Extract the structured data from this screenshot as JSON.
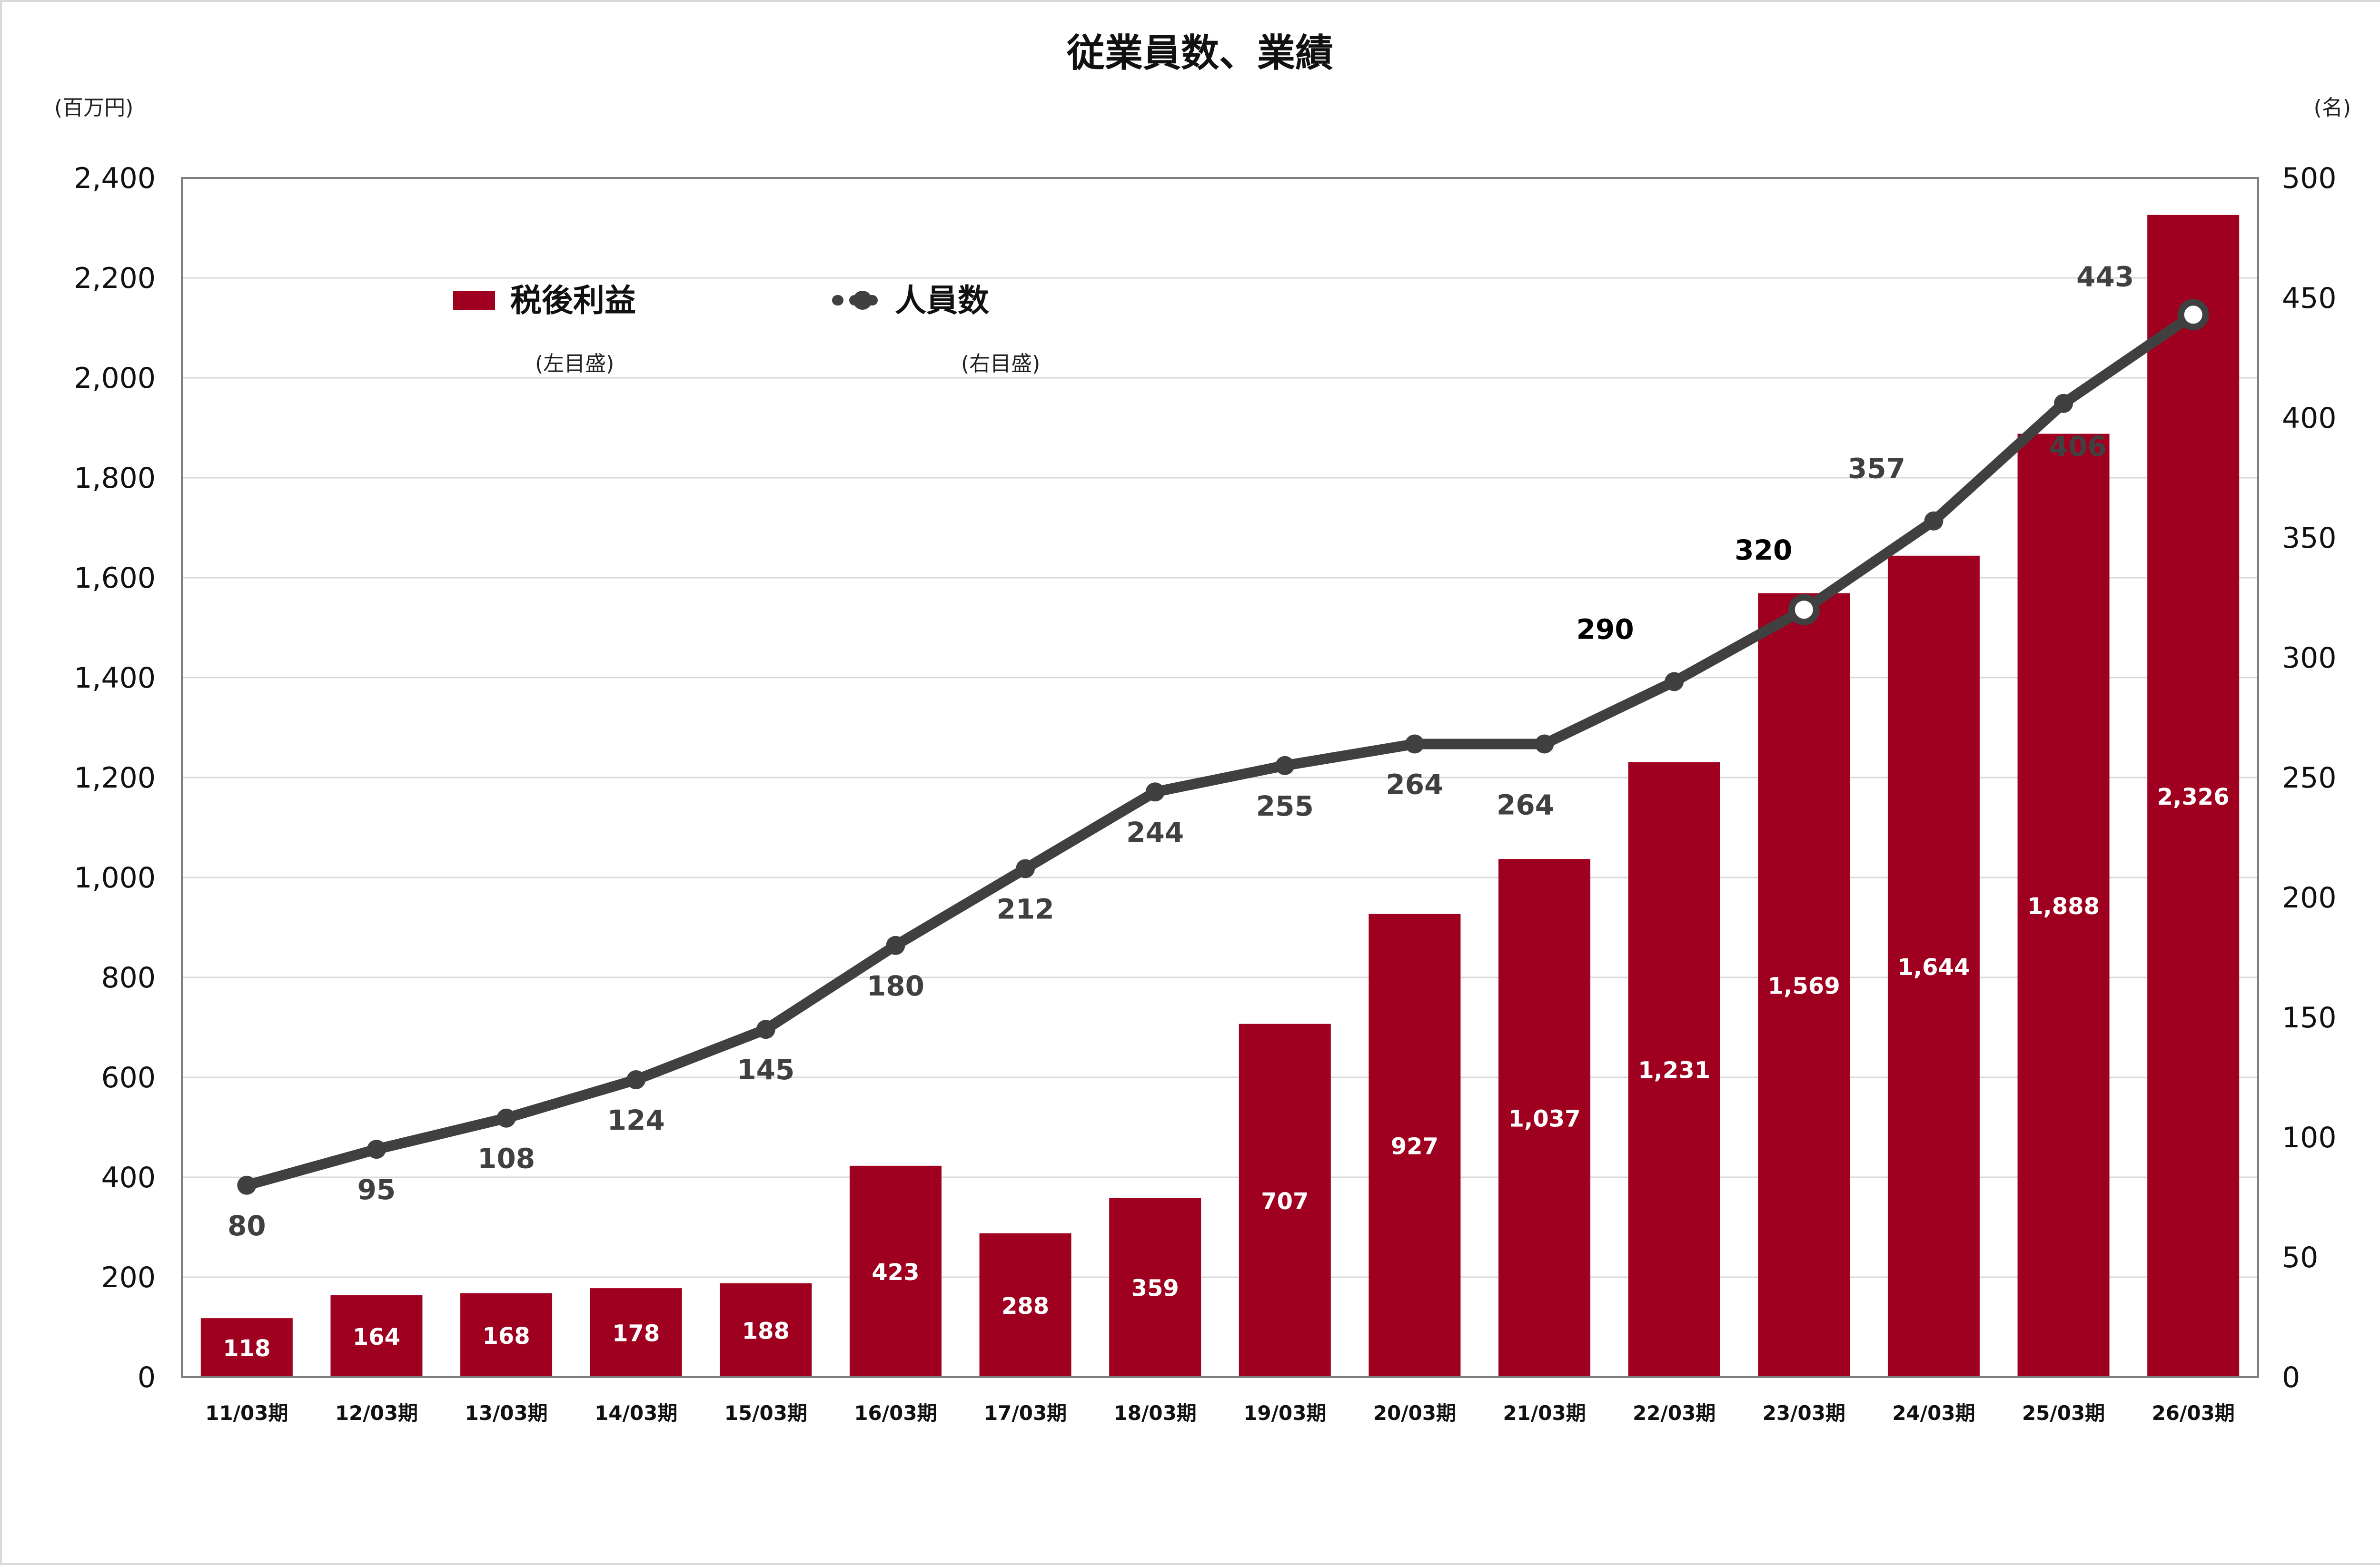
{
  "chart_data": {
    "type": "bar",
    "title": "従業員数、業績",
    "left_unit": "(百万円)",
    "right_unit": "(名)",
    "categories": [
      "11/03期",
      "12/03期",
      "13/03期",
      "14/03期",
      "15/03期",
      "16/03期",
      "17/03期",
      "18/03期",
      "19/03期",
      "20/03期",
      "21/03期",
      "22/03期",
      "23/03期",
      "24/03期",
      "25/03期",
      "26/03期"
    ],
    "series": [
      {
        "name": "税後利益",
        "type": "bar",
        "axis": "left",
        "axis_note": "(左目盛)",
        "color": "#a00020",
        "values": [
          118,
          164,
          168,
          178,
          188,
          423,
          288,
          359,
          707,
          927,
          1037,
          1231,
          1569,
          1644,
          1888,
          2326
        ],
        "value_labels": [
          "118",
          "164",
          "168",
          "178",
          "188",
          "423",
          "288",
          "359",
          "707",
          "927",
          "1,037",
          "1,231",
          "1,569",
          "1,644",
          "1,888",
          "2,326"
        ]
      },
      {
        "name": "人員数",
        "type": "line",
        "axis": "right",
        "axis_note": "(右目盛)",
        "color": "#404040",
        "values": [
          80,
          95,
          108,
          124,
          145,
          180,
          212,
          244,
          255,
          264,
          264,
          290,
          320,
          357,
          406,
          443
        ],
        "value_labels": [
          "80",
          "95",
          "108",
          "124",
          "145",
          "180",
          "212",
          "244",
          "255",
          "264",
          "264",
          "290",
          "320",
          "357",
          "406",
          "443"
        ]
      }
    ],
    "left_axis": {
      "ylim": [
        0,
        2400
      ],
      "ticks": [
        0,
        200,
        400,
        600,
        800,
        1000,
        1200,
        1400,
        1600,
        1800,
        2000,
        2200,
        2400
      ],
      "tick_labels": [
        "0",
        "200",
        "400",
        "600",
        "800",
        "1,000",
        "1,200",
        "1,400",
        "1,600",
        "1,800",
        "2,000",
        "2,200",
        "2,400"
      ]
    },
    "right_axis": {
      "ylim": [
        0,
        500
      ],
      "ticks": [
        0,
        50,
        100,
        150,
        200,
        250,
        300,
        350,
        400,
        450,
        500
      ],
      "tick_labels": [
        "0",
        "50",
        "100",
        "150",
        "200",
        "250",
        "300",
        "350",
        "400",
        "450",
        "500"
      ]
    },
    "grid": true,
    "legend_position": "top-left"
  }
}
